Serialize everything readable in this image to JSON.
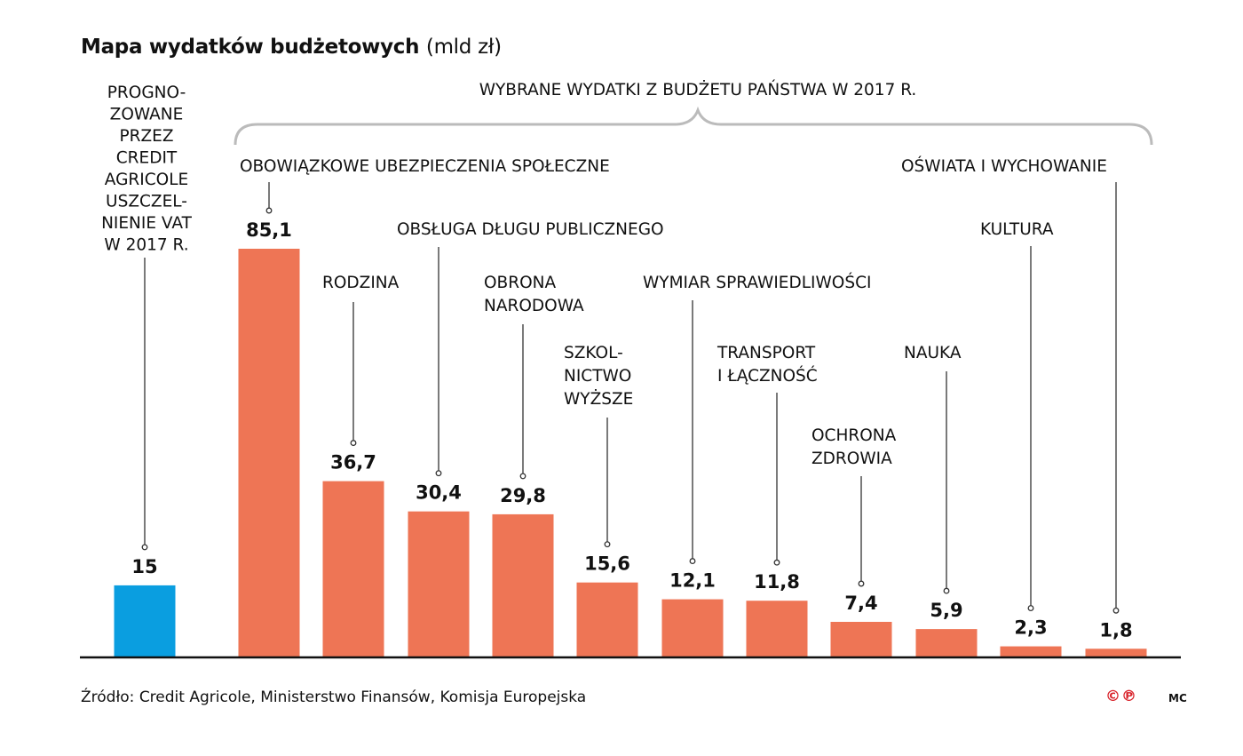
{
  "title": "Mapa wydatków budżetowych",
  "unit": "(mld zł)",
  "group_label": "WYBRANE WYDATKI Z BUDŻETU PAŃSTWA W 2017 R.",
  "source": "Źródło: Credit Agricole, Ministerstwo Finansów, Komisja Europejska",
  "logo": "©℗",
  "author": "MC",
  "chart_data": {
    "type": "bar",
    "title": "Mapa wydatków budżetowych (mld zł)",
    "xlabel": "",
    "ylabel": "",
    "ylim": [
      0,
      85.1
    ],
    "grid": false,
    "categories": [
      "PROGNO-\nZOWANE\nPRZEZ\nCREDIT\nAGRICOLE\nUSZCZEL-\nNIENIE VAT\nW 2017 R.",
      "OBOWIĄZKOWE UBEZPIECZENIA SPOŁECZNE",
      "RODZINA",
      "OBSŁUGA DŁUGU PUBLICZNEGO",
      "OBRONA\nNARODOWA",
      "SZKOL-\nNICTWO\nWYŻSZE",
      "WYMIAR SPRAWIEDLIWOŚCI",
      "TRANSPORT\nI ŁĄCZNOŚĆ",
      "OCHRONA\nZDROWIA",
      "NAUKA",
      "KULTURA",
      "OŚWIATA I WYCHOWANIE"
    ],
    "values": [
      15,
      85.1,
      36.7,
      30.4,
      29.8,
      15.6,
      12.1,
      11.8,
      7.4,
      5.9,
      2.3,
      1.8
    ],
    "value_labels": [
      "15",
      "85,1",
      "36,7",
      "30,4",
      "29,8",
      "15,6",
      "12,1",
      "11,8",
      "7,4",
      "5,9",
      "2,3",
      "1,8"
    ],
    "colors": [
      "#0a9ee0",
      "#ee7555",
      "#ee7555",
      "#ee7555",
      "#ee7555",
      "#ee7555",
      "#ee7555",
      "#ee7555",
      "#ee7555",
      "#ee7555",
      "#ee7555",
      "#ee7555"
    ]
  }
}
